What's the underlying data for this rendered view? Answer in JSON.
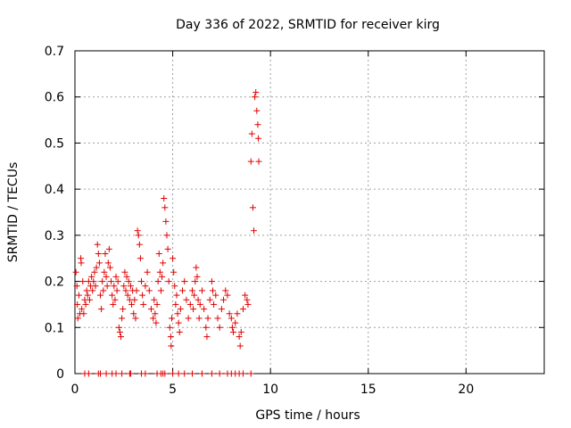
{
  "chart_data": {
    "type": "scatter",
    "title": "Day 336 of 2022, SRMTID for receiver kirg",
    "xlabel": "GPS time / hours",
    "ylabel": "SRMTID / TECUs",
    "xlim": [
      0,
      24
    ],
    "ylim": [
      0,
      0.7
    ],
    "xticks": [
      "0",
      "5",
      "10",
      "15",
      "20"
    ],
    "xtick_values": [
      0,
      5,
      10,
      15,
      20
    ],
    "yticks": [
      "0",
      "0.1",
      "0.2",
      "0.3",
      "0.4",
      "0.5",
      "0.6",
      "0.7"
    ],
    "ytick_values": [
      0,
      0.1,
      0.2,
      0.3,
      0.4,
      0.5,
      0.6,
      0.7
    ],
    "grid": true,
    "marker": "+",
    "series": [
      {
        "name": "SRMTID",
        "color": "#e00000",
        "points": [
          [
            0.05,
            0.22
          ],
          [
            0.1,
            0.19
          ],
          [
            0.12,
            0.15
          ],
          [
            0.15,
            0.12
          ],
          [
            0.2,
            0.17
          ],
          [
            0.25,
            0.13
          ],
          [
            0.3,
            0.25
          ],
          [
            0.32,
            0.24
          ],
          [
            0.35,
            0.14
          ],
          [
            0.4,
            0.2
          ],
          [
            0.45,
            0.13
          ],
          [
            0.5,
            0.16
          ],
          [
            0.55,
            0.15
          ],
          [
            0.6,
            0.18
          ],
          [
            0.65,
            0.17
          ],
          [
            0.7,
            0.2
          ],
          [
            0.75,
            0.16
          ],
          [
            0.8,
            0.19
          ],
          [
            0.85,
            0.21
          ],
          [
            0.9,
            0.18
          ],
          [
            0.95,
            0.2
          ],
          [
            1.0,
            0.22
          ],
          [
            1.05,
            0.19
          ],
          [
            1.1,
            0.23
          ],
          [
            1.15,
            0.28
          ],
          [
            1.2,
            0.26
          ],
          [
            1.25,
            0.24
          ],
          [
            1.3,
            0.17
          ],
          [
            1.35,
            0.14
          ],
          [
            1.4,
            0.2
          ],
          [
            1.45,
            0.18
          ],
          [
            1.5,
            0.22
          ],
          [
            1.55,
            0.26
          ],
          [
            1.6,
            0.21
          ],
          [
            1.65,
            0.19
          ],
          [
            1.7,
            0.24
          ],
          [
            1.75,
            0.27
          ],
          [
            1.8,
            0.23
          ],
          [
            1.85,
            0.2
          ],
          [
            1.9,
            0.17
          ],
          [
            1.95,
            0.15
          ],
          [
            2.0,
            0.19
          ],
          [
            2.05,
            0.16
          ],
          [
            2.1,
            0.21
          ],
          [
            2.15,
            0.18
          ],
          [
            2.2,
            0.2
          ],
          [
            2.25,
            0.1
          ],
          [
            2.3,
            0.09
          ],
          [
            2.35,
            0.08
          ],
          [
            2.4,
            0.12
          ],
          [
            2.45,
            0.14
          ],
          [
            2.5,
            0.19
          ],
          [
            2.55,
            0.22
          ],
          [
            2.6,
            0.18
          ],
          [
            2.65,
            0.21
          ],
          [
            2.7,
            0.17
          ],
          [
            2.75,
            0.2
          ],
          [
            2.8,
            0.16
          ],
          [
            2.85,
            0.19
          ],
          [
            2.9,
            0.15
          ],
          [
            2.95,
            0.18
          ],
          [
            3.0,
            0.13
          ],
          [
            3.05,
            0.16
          ],
          [
            3.1,
            0.12
          ],
          [
            3.15,
            0.18
          ],
          [
            3.2,
            0.31
          ],
          [
            3.25,
            0.3
          ],
          [
            3.3,
            0.28
          ],
          [
            3.35,
            0.25
          ],
          [
            3.4,
            0.2
          ],
          [
            3.45,
            0.17
          ],
          [
            3.5,
            0.15
          ],
          [
            3.6,
            0.19
          ],
          [
            3.7,
            0.22
          ],
          [
            3.8,
            0.18
          ],
          [
            3.9,
            0.14
          ],
          [
            4.0,
            0.12
          ],
          [
            4.05,
            0.16
          ],
          [
            4.1,
            0.13
          ],
          [
            4.15,
            0.11
          ],
          [
            4.2,
            0.15
          ],
          [
            4.25,
            0.2
          ],
          [
            4.3,
            0.26
          ],
          [
            4.35,
            0.22
          ],
          [
            4.4,
            0.18
          ],
          [
            4.45,
            0.21
          ],
          [
            4.5,
            0.24
          ],
          [
            4.55,
            0.38
          ],
          [
            4.6,
            0.36
          ],
          [
            4.65,
            0.33
          ],
          [
            4.7,
            0.3
          ],
          [
            4.75,
            0.27
          ],
          [
            4.8,
            0.2
          ],
          [
            4.85,
            0.1
          ],
          [
            4.9,
            0.08
          ],
          [
            4.92,
            0.06
          ],
          [
            4.95,
            0.12
          ],
          [
            5.0,
            0.25
          ],
          [
            5.05,
            0.22
          ],
          [
            5.1,
            0.19
          ],
          [
            5.15,
            0.15
          ],
          [
            5.2,
            0.17
          ],
          [
            5.25,
            0.13
          ],
          [
            5.3,
            0.11
          ],
          [
            5.35,
            0.09
          ],
          [
            5.4,
            0.14
          ],
          [
            5.5,
            0.18
          ],
          [
            5.6,
            0.2
          ],
          [
            5.7,
            0.16
          ],
          [
            5.8,
            0.12
          ],
          [
            5.9,
            0.15
          ],
          [
            6.0,
            0.18
          ],
          [
            6.05,
            0.14
          ],
          [
            6.1,
            0.17
          ],
          [
            6.15,
            0.2
          ],
          [
            6.2,
            0.23
          ],
          [
            6.25,
            0.21
          ],
          [
            6.3,
            0.16
          ],
          [
            6.35,
            0.12
          ],
          [
            6.4,
            0.15
          ],
          [
            6.5,
            0.18
          ],
          [
            6.6,
            0.14
          ],
          [
            6.7,
            0.1
          ],
          [
            6.75,
            0.08
          ],
          [
            6.8,
            0.12
          ],
          [
            6.9,
            0.16
          ],
          [
            7.0,
            0.2
          ],
          [
            7.05,
            0.18
          ],
          [
            7.1,
            0.15
          ],
          [
            7.2,
            0.17
          ],
          [
            7.3,
            0.12
          ],
          [
            7.4,
            0.1
          ],
          [
            7.5,
            0.14
          ],
          [
            7.6,
            0.16
          ],
          [
            7.7,
            0.18
          ],
          [
            7.8,
            0.17
          ],
          [
            7.9,
            0.13
          ],
          [
            8.0,
            0.12
          ],
          [
            8.05,
            0.1
          ],
          [
            8.1,
            0.09
          ],
          [
            8.2,
            0.11
          ],
          [
            8.3,
            0.13
          ],
          [
            8.4,
            0.08
          ],
          [
            8.45,
            0.06
          ],
          [
            8.5,
            0.09
          ],
          [
            8.6,
            0.14
          ],
          [
            8.7,
            0.17
          ],
          [
            8.8,
            0.16
          ],
          [
            8.85,
            0.15
          ],
          [
            9.0,
            0.46
          ],
          [
            9.05,
            0.52
          ],
          [
            9.1,
            0.36
          ],
          [
            9.15,
            0.31
          ],
          [
            9.2,
            0.6
          ],
          [
            9.25,
            0.61
          ],
          [
            9.3,
            0.57
          ],
          [
            9.35,
            0.54
          ],
          [
            9.38,
            0.51
          ],
          [
            9.4,
            0.46
          ],
          [
            0.5,
            0
          ],
          [
            0.7,
            0
          ],
          [
            1.2,
            0
          ],
          [
            1.3,
            0
          ],
          [
            1.6,
            0
          ],
          [
            1.9,
            0
          ],
          [
            2.1,
            0
          ],
          [
            2.4,
            0
          ],
          [
            2.8,
            0
          ],
          [
            2.85,
            0
          ],
          [
            3.4,
            0
          ],
          [
            3.6,
            0
          ],
          [
            4.2,
            0
          ],
          [
            4.4,
            0
          ],
          [
            4.5,
            0
          ],
          [
            4.6,
            0
          ],
          [
            5.0,
            0
          ],
          [
            5.3,
            0
          ],
          [
            5.6,
            0
          ],
          [
            6.0,
            0
          ],
          [
            6.5,
            0
          ],
          [
            7.0,
            0
          ],
          [
            7.4,
            0
          ],
          [
            7.8,
            0
          ],
          [
            8.0,
            0
          ],
          [
            8.2,
            0
          ],
          [
            8.4,
            0
          ],
          [
            8.6,
            0
          ],
          [
            9.0,
            0
          ]
        ]
      }
    ]
  }
}
